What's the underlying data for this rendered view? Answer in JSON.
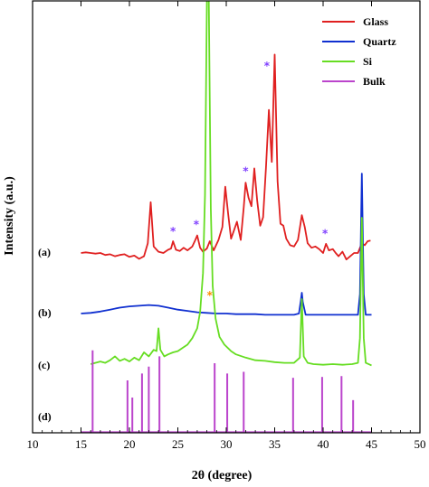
{
  "chart_data": {
    "type": "line",
    "xlabel": "2θ (degree)",
    "ylabel": "Intensity (a.u.)",
    "xlim": [
      10,
      50
    ],
    "x_ticks": [
      "10",
      "15",
      "20",
      "25",
      "30",
      "35",
      "40",
      "45",
      "50"
    ],
    "y_ticks": false,
    "grid": false,
    "legend_position": "top-right",
    "trace_labels": [
      "(a)",
      "(b)",
      "(c)",
      "(d)"
    ],
    "series": [
      {
        "name": "Glass",
        "label": "(a)",
        "color": "#e02020",
        "baseline": 0,
        "points": [
          [
            15.0,
            0.0
          ],
          [
            15.5,
            0.01
          ],
          [
            16.0,
            0.0
          ],
          [
            16.5,
            -0.01
          ],
          [
            17.0,
            0.0
          ],
          [
            17.5,
            -0.03
          ],
          [
            18.0,
            -0.02
          ],
          [
            18.5,
            -0.05
          ],
          [
            19.0,
            -0.03
          ],
          [
            19.5,
            -0.02
          ],
          [
            20.0,
            -0.06
          ],
          [
            20.5,
            -0.04
          ],
          [
            21.0,
            -0.09
          ],
          [
            21.5,
            -0.05
          ],
          [
            21.9,
            0.15
          ],
          [
            22.2,
            0.78
          ],
          [
            22.5,
            0.1
          ],
          [
            23.0,
            0.02
          ],
          [
            23.5,
            0.0
          ],
          [
            24.0,
            0.05
          ],
          [
            24.3,
            0.07
          ],
          [
            24.5,
            0.18
          ],
          [
            24.8,
            0.05
          ],
          [
            25.2,
            0.03
          ],
          [
            25.6,
            0.08
          ],
          [
            26.0,
            0.04
          ],
          [
            26.5,
            0.1
          ],
          [
            26.8,
            0.2
          ],
          [
            27.0,
            0.27
          ],
          [
            27.3,
            0.08
          ],
          [
            27.6,
            0.02
          ],
          [
            28.0,
            0.07
          ],
          [
            28.3,
            0.18
          ],
          [
            28.7,
            0.04
          ],
          [
            29.2,
            0.2
          ],
          [
            29.6,
            0.4
          ],
          [
            29.9,
            1.02
          ],
          [
            30.2,
            0.6
          ],
          [
            30.5,
            0.22
          ],
          [
            30.8,
            0.35
          ],
          [
            31.1,
            0.48
          ],
          [
            31.5,
            0.2
          ],
          [
            31.8,
            0.7
          ],
          [
            32.0,
            1.08
          ],
          [
            32.3,
            0.85
          ],
          [
            32.6,
            0.72
          ],
          [
            32.9,
            1.3
          ],
          [
            33.2,
            0.8
          ],
          [
            33.5,
            0.42
          ],
          [
            33.8,
            0.55
          ],
          [
            34.1,
            1.32
          ],
          [
            34.4,
            2.2
          ],
          [
            34.7,
            1.4
          ],
          [
            35.0,
            3.05
          ],
          [
            35.3,
            1.1
          ],
          [
            35.6,
            0.45
          ],
          [
            35.9,
            0.42
          ],
          [
            36.2,
            0.22
          ],
          [
            36.6,
            0.12
          ],
          [
            37.0,
            0.1
          ],
          [
            37.4,
            0.2
          ],
          [
            37.8,
            0.58
          ],
          [
            38.1,
            0.4
          ],
          [
            38.4,
            0.15
          ],
          [
            38.8,
            0.08
          ],
          [
            39.2,
            0.1
          ],
          [
            39.6,
            0.06
          ],
          [
            40.0,
            0.0
          ],
          [
            40.3,
            0.14
          ],
          [
            40.6,
            0.04
          ],
          [
            41.0,
            0.06
          ],
          [
            41.3,
            0.0
          ],
          [
            41.6,
            -0.05
          ],
          [
            42.0,
            0.02
          ],
          [
            42.4,
            -0.1
          ],
          [
            42.8,
            -0.05
          ],
          [
            43.2,
            0.0
          ],
          [
            43.6,
            0.0
          ],
          [
            44.0,
            0.15
          ],
          [
            44.3,
            0.12
          ],
          [
            44.6,
            0.18
          ],
          [
            44.9,
            0.19
          ]
        ]
      },
      {
        "name": "Quartz",
        "label": "(b)",
        "color": "#1030d0",
        "baseline": 0,
        "points": [
          [
            15.0,
            0.0
          ],
          [
            16.0,
            0.01
          ],
          [
            17.0,
            0.03
          ],
          [
            18.0,
            0.06
          ],
          [
            19.0,
            0.09
          ],
          [
            20.0,
            0.11
          ],
          [
            21.0,
            0.12
          ],
          [
            22.0,
            0.13
          ],
          [
            23.0,
            0.12
          ],
          [
            24.0,
            0.09
          ],
          [
            25.0,
            0.06
          ],
          [
            26.0,
            0.04
          ],
          [
            27.0,
            0.02
          ],
          [
            28.0,
            0.01
          ],
          [
            29.0,
            0.0
          ],
          [
            30.0,
            0.0
          ],
          [
            31.0,
            -0.01
          ],
          [
            32.0,
            -0.01
          ],
          [
            33.0,
            -0.01
          ],
          [
            34.0,
            -0.02
          ],
          [
            35.0,
            -0.02
          ],
          [
            36.0,
            -0.02
          ],
          [
            37.0,
            -0.02
          ],
          [
            37.5,
            0.0
          ],
          [
            37.7,
            0.2
          ],
          [
            37.8,
            0.32
          ],
          [
            37.9,
            0.18
          ],
          [
            38.2,
            -0.02
          ],
          [
            39.0,
            -0.02
          ],
          [
            40.0,
            -0.02
          ],
          [
            41.0,
            -0.02
          ],
          [
            42.0,
            -0.02
          ],
          [
            43.0,
            -0.02
          ],
          [
            43.6,
            -0.02
          ],
          [
            43.8,
            0.3
          ],
          [
            44.0,
            2.15
          ],
          [
            44.2,
            0.3
          ],
          [
            44.4,
            -0.02
          ],
          [
            45.0,
            -0.02
          ]
        ]
      },
      {
        "name": "Si",
        "label": "(c)",
        "color": "#66dd22",
        "baseline": 0,
        "points": [
          [
            16.0,
            0.0
          ],
          [
            17.0,
            0.04
          ],
          [
            17.5,
            0.02
          ],
          [
            18.0,
            0.06
          ],
          [
            18.5,
            0.12
          ],
          [
            19.0,
            0.05
          ],
          [
            19.5,
            0.08
          ],
          [
            20.0,
            0.04
          ],
          [
            20.5,
            0.1
          ],
          [
            21.0,
            0.06
          ],
          [
            21.5,
            0.18
          ],
          [
            22.0,
            0.12
          ],
          [
            22.5,
            0.22
          ],
          [
            22.8,
            0.2
          ],
          [
            23.0,
            0.55
          ],
          [
            23.2,
            0.22
          ],
          [
            23.6,
            0.12
          ],
          [
            24.0,
            0.15
          ],
          [
            24.5,
            0.18
          ],
          [
            25.0,
            0.2
          ],
          [
            25.5,
            0.25
          ],
          [
            26.0,
            0.3
          ],
          [
            26.5,
            0.4
          ],
          [
            27.0,
            0.55
          ],
          [
            27.3,
            0.8
          ],
          [
            27.6,
            1.4
          ],
          [
            27.8,
            2.6
          ],
          [
            28.0,
            5.6
          ],
          [
            28.2,
            5.6
          ],
          [
            28.4,
            2.4
          ],
          [
            28.6,
            1.2
          ],
          [
            28.9,
            0.7
          ],
          [
            29.3,
            0.42
          ],
          [
            29.8,
            0.3
          ],
          [
            30.5,
            0.2
          ],
          [
            31.0,
            0.15
          ],
          [
            32.0,
            0.1
          ],
          [
            33.0,
            0.06
          ],
          [
            34.0,
            0.05
          ],
          [
            35.0,
            0.03
          ],
          [
            36.0,
            0.02
          ],
          [
            37.0,
            0.02
          ],
          [
            37.6,
            0.1
          ],
          [
            37.8,
            1.0
          ],
          [
            38.0,
            0.12
          ],
          [
            38.4,
            0.02
          ],
          [
            39.0,
            0.0
          ],
          [
            40.0,
            -0.01
          ],
          [
            41.0,
            0.0
          ],
          [
            42.0,
            -0.01
          ],
          [
            43.0,
            0.0
          ],
          [
            43.6,
            0.02
          ],
          [
            43.8,
            0.4
          ],
          [
            44.0,
            2.25
          ],
          [
            44.2,
            0.4
          ],
          [
            44.4,
            0.02
          ],
          [
            45.0,
            -0.02
          ]
        ]
      },
      {
        "name": "Bulk",
        "label": "(d)",
        "color": "#bb44cc",
        "type": "sticks",
        "sticks": [
          [
            16.2,
            0.95
          ],
          [
            19.8,
            0.6
          ],
          [
            20.3,
            0.4
          ],
          [
            21.3,
            0.68
          ],
          [
            22.0,
            0.76
          ],
          [
            23.1,
            0.88
          ],
          [
            28.8,
            0.8
          ],
          [
            30.1,
            0.68
          ],
          [
            31.8,
            0.7
          ],
          [
            36.9,
            0.63
          ],
          [
            39.9,
            0.64
          ],
          [
            41.9,
            0.65
          ],
          [
            43.1,
            0.37
          ]
        ]
      }
    ],
    "annotations": [
      {
        "text": "*",
        "x": 24.5,
        "y": 0.28,
        "series": "Glass",
        "color": "#8040ff"
      },
      {
        "text": "*",
        "x": 26.9,
        "y": 0.38,
        "series": "Glass",
        "color": "#8040ff"
      },
      {
        "text": "*",
        "x": 28.3,
        "y": 1.0,
        "series": "Si",
        "color": "#ff8c00"
      },
      {
        "text": "*",
        "x": 32.0,
        "y": 1.2,
        "series": "Glass",
        "color": "#8040ff"
      },
      {
        "text": "*",
        "x": 34.2,
        "y": 2.82,
        "series": "Glass",
        "color": "#8040ff"
      },
      {
        "text": "*",
        "x": 40.2,
        "y": 0.24,
        "series": "Glass",
        "color": "#8040ff"
      }
    ]
  }
}
